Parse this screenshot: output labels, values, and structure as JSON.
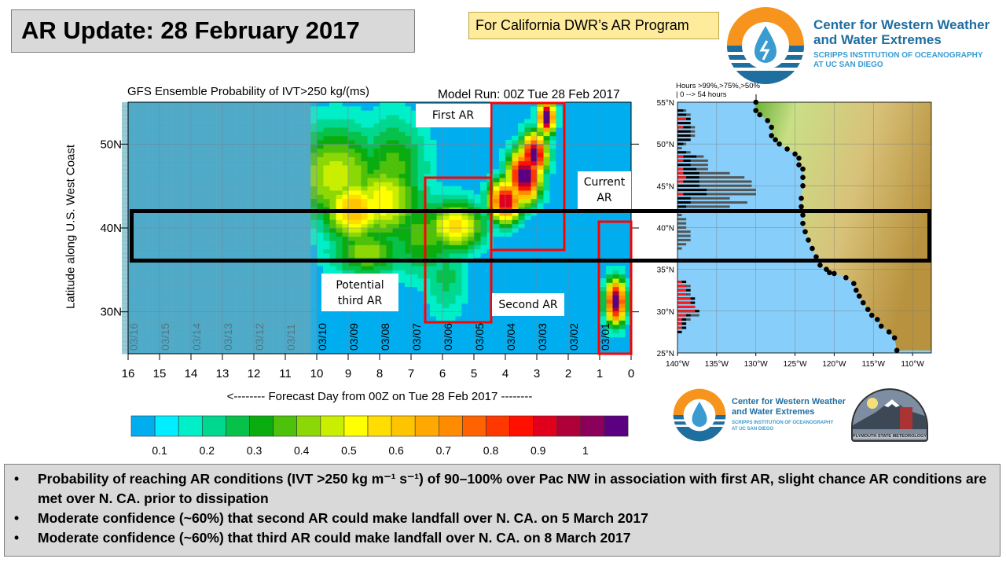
{
  "slide": {
    "title": "AR Update: 28 February 2017",
    "audience_note": "For California DWR’s AR Program",
    "bullets": [
      "Probability of reaching AR conditions (IVT >250 kg m⁻¹ s⁻¹) of 90–100% over Pac NW in association with first AR, slight chance AR conditions are met over N. CA. prior to dissipation",
      "Moderate confidence (~60%) that second AR could make landfall over N. CA. on 5 March 2017",
      "Moderate confidence (~60%) that third AR could make landfall over N. CA. on 8 March 2017"
    ]
  },
  "logos": {
    "cw3e": {
      "line1": "Center for Western Weather",
      "line2": "and Water Extremes",
      "line3": "SCRIPPS INSTITUTION OF OCEANOGRAPHY",
      "line4": "AT UC SAN DIEGO"
    },
    "plymouth": "PLYMOUTH STATE METEOROLOGY"
  },
  "chart_data": [
    {
      "type": "heatmap",
      "title": "GFS Ensemble Probability of IVT>250 kg/(ms)",
      "subtitle": "Model Run: 00Z Tue 28 Feb 2017",
      "xlabel": "<-------- Forecast Day from 00Z on Tue 28 Feb 2017 --------",
      "ylabel": "Latitude along U.S. West Coast",
      "xlim": [
        16,
        0
      ],
      "ylim": [
        25,
        55
      ],
      "x_ticks": [
        "16",
        "15",
        "14",
        "13",
        "12",
        "11",
        "10",
        "9",
        "8",
        "7",
        "6",
        "5",
        "4",
        "3",
        "2",
        "1",
        "0"
      ],
      "y_ticks": [
        "50N",
        "40N",
        "30N"
      ],
      "date_labels": [
        "03/16",
        "03/15",
        "03/14",
        "03/13",
        "03/12",
        "03/11",
        "03/10",
        "03/09",
        "03/08",
        "03/07",
        "03/06",
        "03/05",
        "03/04",
        "03/03",
        "03/02",
        "03/01"
      ],
      "colorbar": {
        "labels": [
          "0.1",
          "0.2",
          "0.3",
          "0.4",
          "0.5",
          "0.6",
          "0.7",
          "0.8",
          "0.9",
          "1"
        ],
        "colors": [
          "#00aeef",
          "#00eeff",
          "#00eec8",
          "#00d890",
          "#06c14a",
          "#0aad10",
          "#4ec10a",
          "#8cd806",
          "#c9ee00",
          "#ffff00",
          "#ffdd00",
          "#ffc400",
          "#ffa800",
          "#ff8c00",
          "#ff6200",
          "#ff3800",
          "#ff1000",
          "#e0001e",
          "#b0003a",
          "#8a005a",
          "#5a0080"
        ]
      },
      "annotations": {
        "first_ar": "First AR",
        "second_ar": "Second AR",
        "current_ar": "Current AR",
        "third_ar": "Potential third AR"
      }
    },
    {
      "type": "map-bar",
      "header_line1": "Hours >99%,>75%,>50%",
      "header_line2": "| 0 --> 54 hours",
      "lat_ticks": [
        "55°N",
        "50°N",
        "45°N",
        "40°N",
        "35°N",
        "30°N",
        "25°N"
      ],
      "lon_ticks": [
        "140°W",
        "135°W",
        "130°W",
        "125°W",
        "120°W",
        "115°W",
        "110°W"
      ],
      "bar_colors": {
        "gt99": "#ff1a1a",
        "gt75": "#000000",
        "gt50": "#555555"
      },
      "bars": [
        {
          "lat": 54.0,
          "hours": [
            0,
            4,
            6
          ]
        },
        {
          "lat": 53.5,
          "hours": [
            0,
            6,
            9
          ]
        },
        {
          "lat": 53.0,
          "hours": [
            6,
            9,
            9
          ]
        },
        {
          "lat": 52.5,
          "hours": [
            0,
            9,
            9
          ]
        },
        {
          "lat": 52.0,
          "hours": [
            4,
            9,
            12
          ]
        },
        {
          "lat": 51.5,
          "hours": [
            0,
            9,
            12
          ]
        },
        {
          "lat": 51.0,
          "hours": [
            0,
            9,
            12
          ]
        },
        {
          "lat": 50.5,
          "hours": [
            0,
            9,
            9
          ]
        },
        {
          "lat": 50.0,
          "hours": [
            0,
            4,
            6
          ]
        },
        {
          "lat": 49.5,
          "hours": [
            0,
            0,
            3
          ]
        },
        {
          "lat": 49.0,
          "hours": [
            0,
            6,
            9
          ]
        },
        {
          "lat": 48.5,
          "hours": [
            4,
            13,
            18
          ]
        },
        {
          "lat": 48.0,
          "hours": [
            4,
            9,
            21
          ]
        },
        {
          "lat": 47.5,
          "hours": [
            0,
            9,
            21
          ]
        },
        {
          "lat": 47.0,
          "hours": [
            4,
            13,
            21
          ]
        },
        {
          "lat": 46.5,
          "hours": [
            4,
            15,
            36
          ]
        },
        {
          "lat": 46.0,
          "hours": [
            6,
            15,
            46
          ]
        },
        {
          "lat": 45.5,
          "hours": [
            4,
            15,
            51
          ]
        },
        {
          "lat": 45.0,
          "hours": [
            0,
            15,
            51
          ]
        },
        {
          "lat": 44.5,
          "hours": [
            0,
            20,
            54
          ]
        },
        {
          "lat": 44.0,
          "hours": [
            4,
            20,
            54
          ]
        },
        {
          "lat": 43.5,
          "hours": [
            0,
            9,
            36
          ]
        },
        {
          "lat": 43.0,
          "hours": [
            0,
            9,
            48
          ]
        },
        {
          "lat": 42.5,
          "hours": [
            0,
            6,
            36
          ]
        },
        {
          "lat": 41.5,
          "hours": [
            0,
            0,
            3
          ]
        },
        {
          "lat": 41.0,
          "hours": [
            0,
            0,
            6
          ]
        },
        {
          "lat": 40.5,
          "hours": [
            0,
            0,
            6
          ]
        },
        {
          "lat": 40.0,
          "hours": [
            0,
            0,
            6
          ]
        },
        {
          "lat": 39.5,
          "hours": [
            0,
            0,
            9
          ]
        },
        {
          "lat": 39.0,
          "hours": [
            0,
            0,
            9
          ]
        },
        {
          "lat": 38.5,
          "hours": [
            0,
            0,
            9
          ]
        },
        {
          "lat": 38.0,
          "hours": [
            0,
            0,
            6
          ]
        },
        {
          "lat": 37.5,
          "hours": [
            0,
            0,
            3
          ]
        },
        {
          "lat": 33.5,
          "hours": [
            3,
            6,
            6
          ]
        },
        {
          "lat": 33.0,
          "hours": [
            6,
            6,
            9
          ]
        },
        {
          "lat": 32.5,
          "hours": [
            6,
            9,
            9
          ]
        },
        {
          "lat": 32.0,
          "hours": [
            6,
            6,
            9
          ]
        },
        {
          "lat": 31.5,
          "hours": [
            9,
            12,
            12
          ]
        },
        {
          "lat": 31.0,
          "hours": [
            9,
            12,
            12
          ]
        },
        {
          "lat": 30.5,
          "hours": [
            12,
            12,
            12
          ]
        },
        {
          "lat": 30.0,
          "hours": [
            12,
            15,
            15
          ]
        },
        {
          "lat": 29.5,
          "hours": [
            6,
            9,
            15
          ]
        },
        {
          "lat": 29.0,
          "hours": [
            3,
            6,
            9
          ]
        },
        {
          "lat": 28.5,
          "hours": [
            3,
            6,
            6
          ]
        },
        {
          "lat": 28.0,
          "hours": [
            3,
            6,
            6
          ]
        },
        {
          "lat": 27.5,
          "hours": [
            0,
            3,
            3
          ]
        }
      ],
      "coast_points": [
        [
          -130,
          55
        ],
        [
          -130,
          54
        ],
        [
          -129.5,
          53.5
        ],
        [
          -128.5,
          52.8
        ],
        [
          -128,
          52
        ],
        [
          -128,
          51
        ],
        [
          -127.5,
          50.5
        ],
        [
          -127,
          50
        ],
        [
          -126,
          49.4
        ],
        [
          -125,
          48.8
        ],
        [
          -124.5,
          48.3
        ],
        [
          -124.5,
          47.5
        ],
        [
          -124,
          47
        ],
        [
          -124,
          46
        ],
        [
          -124,
          45
        ],
        [
          -124.2,
          43.5
        ],
        [
          -124.2,
          42.5
        ],
        [
          -124,
          41.5
        ],
        [
          -124,
          40.5
        ],
        [
          -123.7,
          39.5
        ],
        [
          -123.3,
          38.5
        ],
        [
          -122.8,
          37.5
        ],
        [
          -122.3,
          36.5
        ],
        [
          -121.8,
          35.5
        ],
        [
          -121,
          35
        ],
        [
          -120.6,
          34.6
        ],
        [
          -120,
          34.5
        ],
        [
          -118.5,
          34
        ],
        [
          -117.5,
          33.3
        ],
        [
          -117.2,
          32.5
        ],
        [
          -116.8,
          31.8
        ],
        [
          -116.3,
          31
        ],
        [
          -115.7,
          30.2
        ],
        [
          -115.2,
          29.5
        ],
        [
          -114.5,
          29
        ],
        [
          -114,
          28.2
        ],
        [
          -113,
          27.5
        ],
        [
          -112.3,
          26.8
        ],
        [
          -112,
          25.3
        ]
      ]
    }
  ]
}
